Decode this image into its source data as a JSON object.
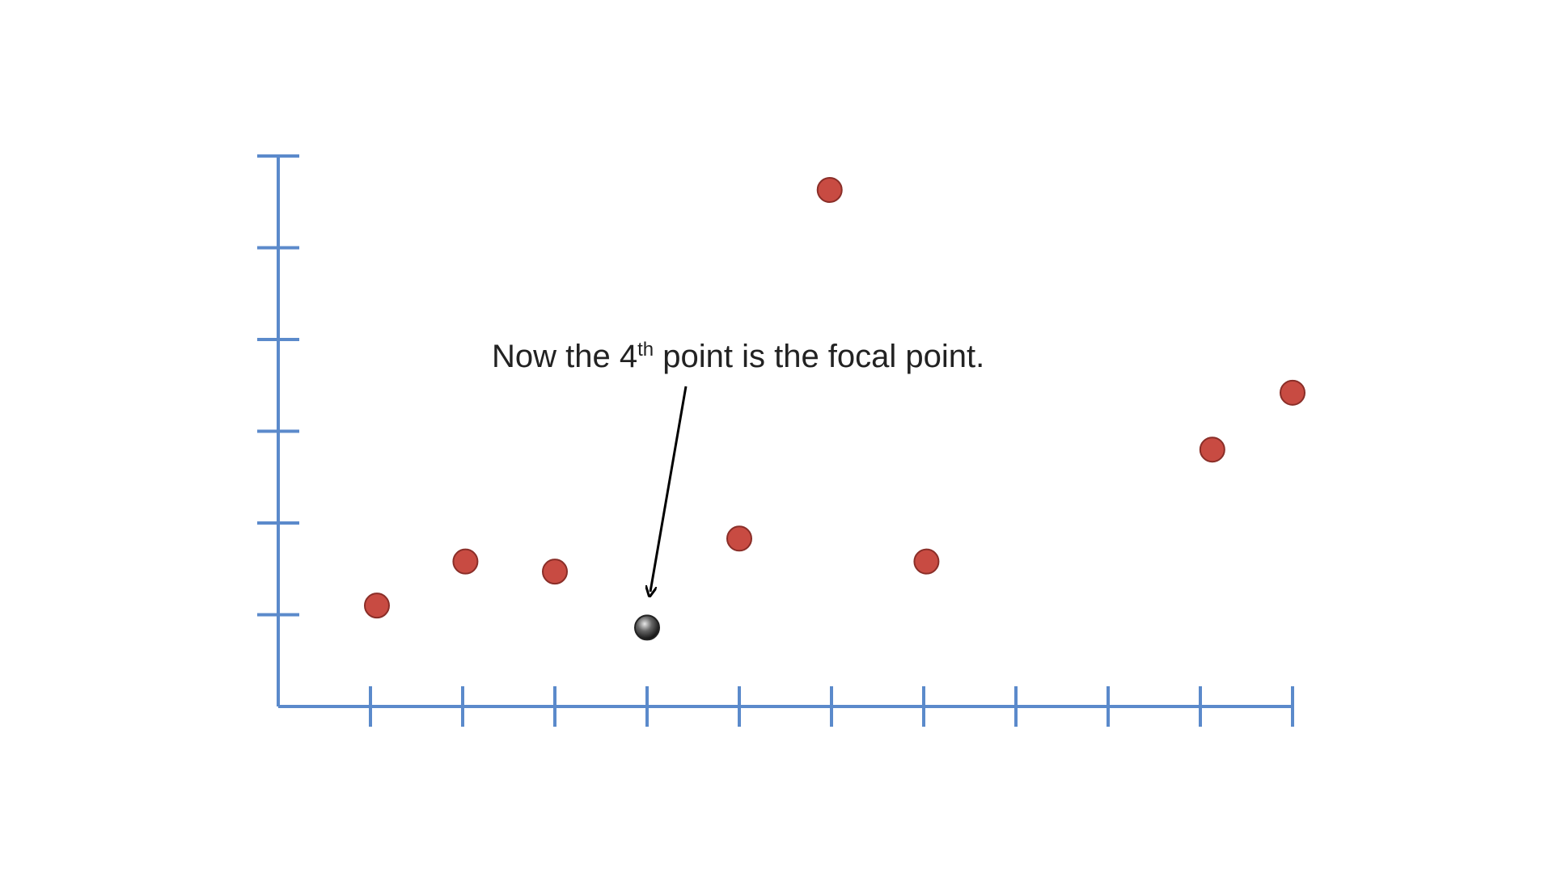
{
  "chart_data": {
    "type": "scatter",
    "title": "",
    "xlabel": "",
    "ylabel": "",
    "x_ticks": [
      1,
      2,
      3,
      4,
      5,
      6,
      7,
      8,
      9,
      10,
      11
    ],
    "y_ticks": [
      1,
      2,
      3,
      4,
      5,
      6
    ],
    "xlim": [
      0,
      11
    ],
    "ylim": [
      0,
      6
    ],
    "grid": false,
    "legend": "none",
    "axis_color": "#5B8ACB",
    "point_color": "#C84B42",
    "focal_point_color": "#444444",
    "points": [
      {
        "x": 1.07,
        "y": 1.1,
        "focal": false
      },
      {
        "x": 2.03,
        "y": 1.58,
        "focal": false
      },
      {
        "x": 3.0,
        "y": 1.47,
        "focal": false
      },
      {
        "x": 4.0,
        "y": 0.86,
        "focal": true
      },
      {
        "x": 5.0,
        "y": 1.83,
        "focal": false
      },
      {
        "x": 5.98,
        "y": 5.63,
        "focal": false
      },
      {
        "x": 7.03,
        "y": 1.58,
        "focal": false
      },
      {
        "x": 10.13,
        "y": 2.8,
        "focal": false
      },
      {
        "x": 11.0,
        "y": 3.42,
        "focal": false
      }
    ],
    "annotation": {
      "text_before": "Now the 4",
      "superscript": "th",
      "text_after": " point is the focal point.",
      "target_index": 3
    }
  }
}
